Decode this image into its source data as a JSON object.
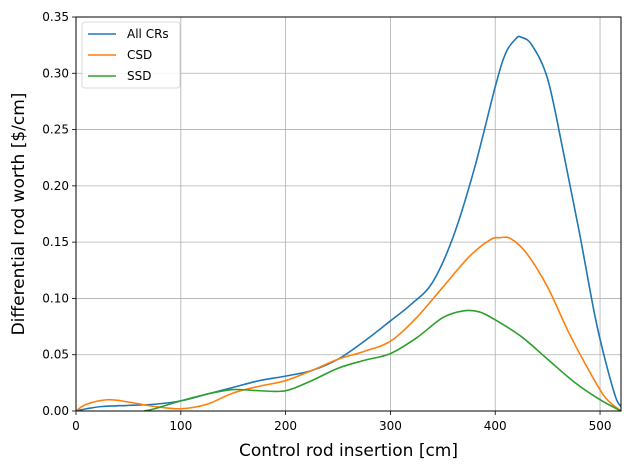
{
  "chart_data": {
    "type": "line",
    "title": "",
    "xlabel": "Control rod insertion [cm]",
    "ylabel": "Differential rod worth [$/cm]",
    "xlim": [
      0,
      520
    ],
    "ylim": [
      0,
      0.35
    ],
    "xticks": [
      0,
      100,
      200,
      300,
      400,
      500
    ],
    "yticks": [
      0.0,
      0.05,
      0.1,
      0.15,
      0.2,
      0.25,
      0.3,
      0.35
    ],
    "grid": true,
    "legend_position": "top-left",
    "series": [
      {
        "name": "All CRs",
        "color": "#1f77b4",
        "points": [
          [
            0,
            0.0
          ],
          [
            10,
            0.002
          ],
          [
            25,
            0.004
          ],
          [
            50,
            0.005
          ],
          [
            75,
            0.006
          ],
          [
            100,
            0.009
          ],
          [
            125,
            0.015
          ],
          [
            150,
            0.021
          ],
          [
            175,
            0.027
          ],
          [
            200,
            0.031
          ],
          [
            225,
            0.036
          ],
          [
            250,
            0.046
          ],
          [
            275,
            0.062
          ],
          [
            300,
            0.08
          ],
          [
            320,
            0.095
          ],
          [
            340,
            0.114
          ],
          [
            360,
            0.155
          ],
          [
            380,
            0.215
          ],
          [
            400,
            0.288
          ],
          [
            410,
            0.318
          ],
          [
            420,
            0.331
          ],
          [
            425,
            0.332
          ],
          [
            435,
            0.325
          ],
          [
            450,
            0.295
          ],
          [
            465,
            0.23
          ],
          [
            480,
            0.16
          ],
          [
            495,
            0.085
          ],
          [
            505,
            0.045
          ],
          [
            515,
            0.012
          ],
          [
            520,
            0.004
          ]
        ]
      },
      {
        "name": "CSD",
        "color": "#ff7f0e",
        "points": [
          [
            0,
            0.0
          ],
          [
            10,
            0.006
          ],
          [
            30,
            0.01
          ],
          [
            50,
            0.008
          ],
          [
            75,
            0.004
          ],
          [
            100,
            0.002
          ],
          [
            125,
            0.006
          ],
          [
            150,
            0.016
          ],
          [
            175,
            0.022
          ],
          [
            200,
            0.027
          ],
          [
            225,
            0.036
          ],
          [
            250,
            0.046
          ],
          [
            275,
            0.053
          ],
          [
            300,
            0.062
          ],
          [
            325,
            0.083
          ],
          [
            350,
            0.11
          ],
          [
            375,
            0.137
          ],
          [
            395,
            0.152
          ],
          [
            405,
            0.154
          ],
          [
            415,
            0.153
          ],
          [
            430,
            0.14
          ],
          [
            450,
            0.11
          ],
          [
            470,
            0.07
          ],
          [
            490,
            0.035
          ],
          [
            505,
            0.012
          ],
          [
            520,
            0.0
          ]
        ]
      },
      {
        "name": "SSD",
        "color": "#2ca02c",
        "points": [
          [
            65,
            0.0
          ],
          [
            75,
            0.002
          ],
          [
            100,
            0.009
          ],
          [
            125,
            0.015
          ],
          [
            150,
            0.019
          ],
          [
            175,
            0.018
          ],
          [
            200,
            0.018
          ],
          [
            225,
            0.027
          ],
          [
            250,
            0.038
          ],
          [
            275,
            0.045
          ],
          [
            300,
            0.051
          ],
          [
            325,
            0.065
          ],
          [
            350,
            0.083
          ],
          [
            370,
            0.089
          ],
          [
            385,
            0.088
          ],
          [
            400,
            0.081
          ],
          [
            425,
            0.066
          ],
          [
            450,
            0.046
          ],
          [
            475,
            0.026
          ],
          [
            500,
            0.01
          ],
          [
            520,
            0.0
          ]
        ]
      }
    ]
  }
}
